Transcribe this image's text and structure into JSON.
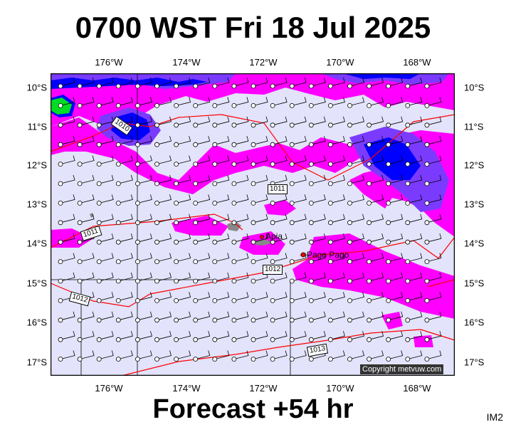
{
  "header": {
    "title": "0700 WST Fri 18 Jul 2025"
  },
  "footer": {
    "subtitle": "Forecast +54 hr",
    "code": "IM2"
  },
  "map": {
    "longitude_ticks": [
      "176°W",
      "174°W",
      "172°W",
      "170°W",
      "168°W"
    ],
    "latitude_ticks": [
      "10°S",
      "11°S",
      "12°S",
      "13°S",
      "14°S",
      "15°S",
      "16°S",
      "17°S"
    ],
    "places": [
      {
        "name": "Apia"
      },
      {
        "name": "Pago Pago"
      }
    ],
    "isobars": [
      "1010",
      "1011",
      "1011",
      "1012",
      "1012",
      "1013"
    ],
    "copyright": "Copyright metvuw.com",
    "colors": {
      "background": "#e3e3fb",
      "rain_light": "#ff00ff",
      "rain_medium": "#7a3bff",
      "rain_heavy": "#0000ff",
      "rain_extreme": "#00dd22",
      "isobar": "#ff0000",
      "land": "#888888"
    }
  }
}
